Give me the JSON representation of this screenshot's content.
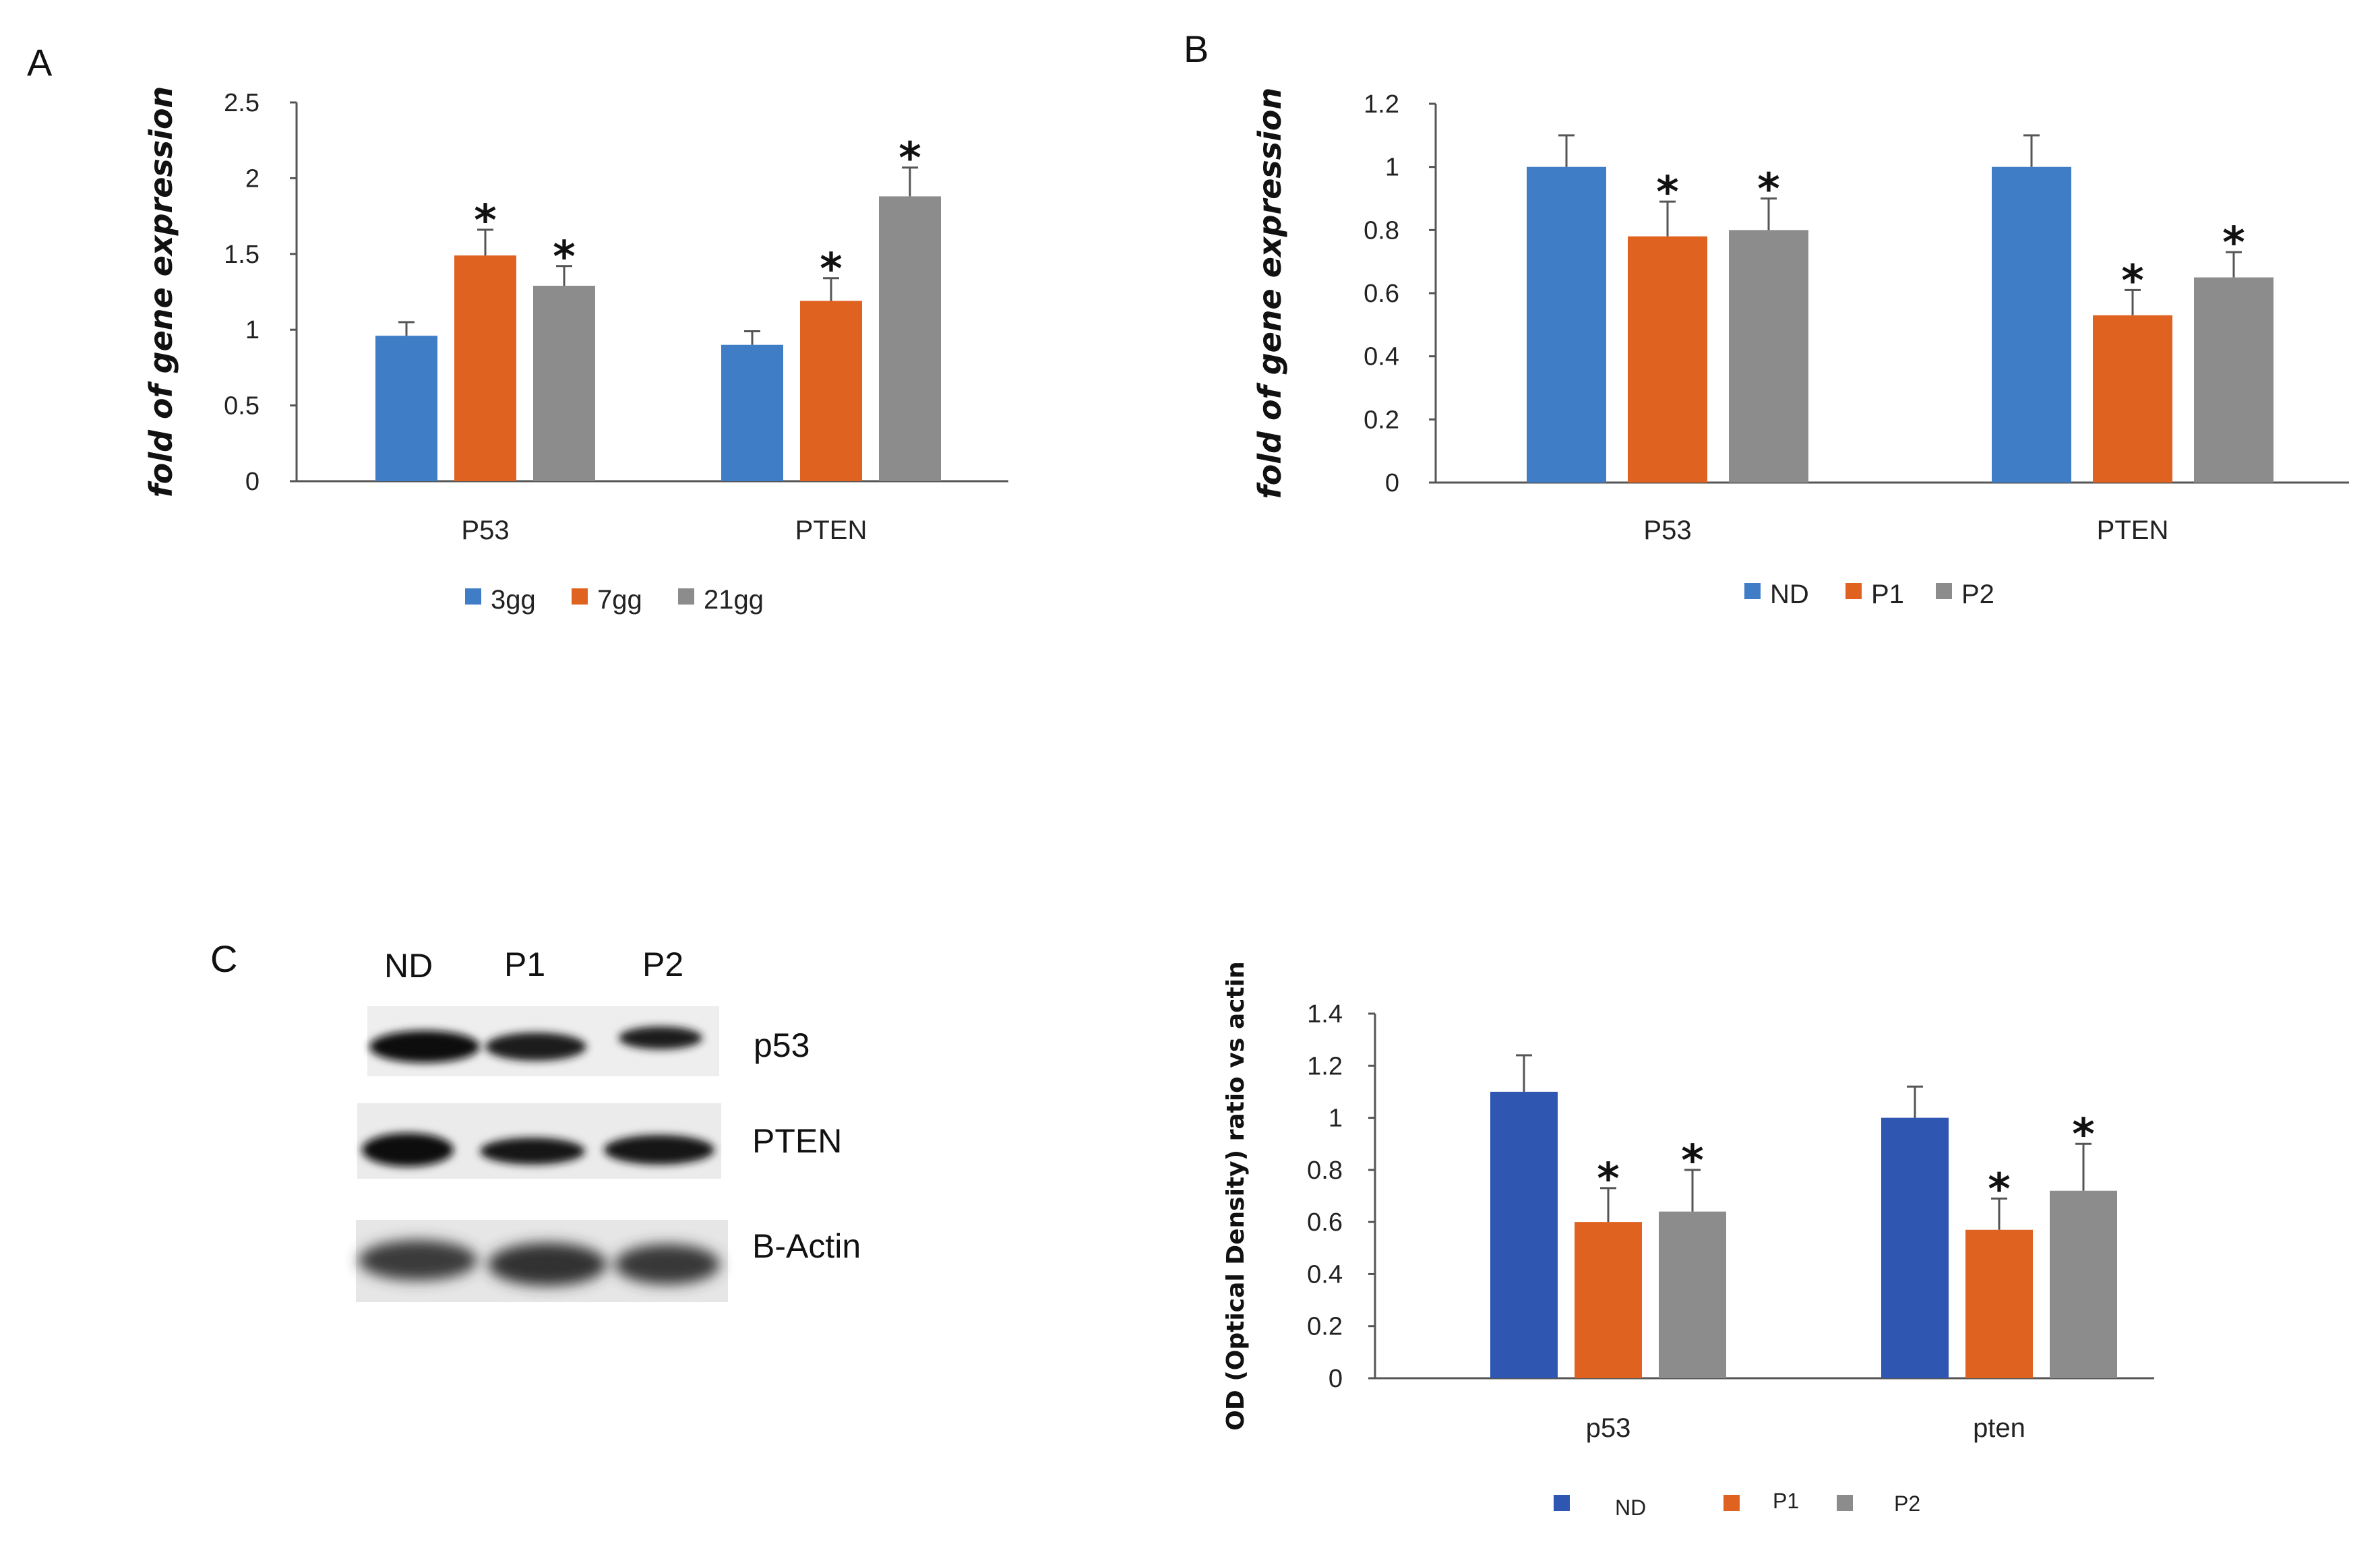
{
  "chart_data": [
    {
      "type": "bar",
      "panel": "A",
      "title": "",
      "xlabel": "",
      "ylabel": "fold of gene expression",
      "ylim": [
        0,
        2.5
      ],
      "yticks": [
        "0",
        "0.5",
        "1",
        "1.5",
        "2",
        "2.5"
      ],
      "categories": [
        "P53",
        "PTEN"
      ],
      "series": [
        {
          "name": "3gg",
          "color": "#3f7ec7",
          "values": [
            0.96,
            0.9
          ],
          "errors": [
            0.09,
            0.09
          ],
          "significant": [
            false,
            false
          ]
        },
        {
          "name": "7gg",
          "color": "#e06220",
          "values": [
            1.49,
            1.19
          ],
          "errors": [
            0.17,
            0.15
          ],
          "significant": [
            true,
            true
          ]
        },
        {
          "name": "21gg",
          "color": "#8c8c8c",
          "values": [
            1.29,
            1.88
          ],
          "errors": [
            0.13,
            0.19
          ],
          "significant": [
            true,
            true
          ]
        }
      ],
      "legend": "bottom",
      "significance_marker": "*"
    },
    {
      "type": "bar",
      "panel": "B",
      "title": "",
      "xlabel": "",
      "ylabel": "fold of gene expression",
      "ylim": [
        0,
        1.2
      ],
      "yticks": [
        "0",
        "0.2",
        "0.4",
        "0.6",
        "0.8",
        "1",
        "1.2"
      ],
      "categories": [
        "P53",
        "PTEN"
      ],
      "series": [
        {
          "name": "ND",
          "color": "#3f7ec7",
          "values": [
            1.0,
            1.0
          ],
          "errors": [
            0.1,
            0.1
          ],
          "significant": [
            false,
            false
          ]
        },
        {
          "name": "P1",
          "color": "#e06220",
          "values": [
            0.78,
            0.53
          ],
          "errors": [
            0.11,
            0.08
          ],
          "significant": [
            true,
            true
          ]
        },
        {
          "name": "P2",
          "color": "#8c8c8c",
          "values": [
            0.8,
            0.65
          ],
          "errors": [
            0.1,
            0.08
          ],
          "significant": [
            true,
            true
          ]
        }
      ],
      "legend": "bottom",
      "significance_marker": "*"
    },
    {
      "type": "bar",
      "panel": "C",
      "title": "",
      "xlabel": "",
      "ylabel": "OD (Optical Density) ratio vs actin",
      "ylim": [
        0,
        1.4
      ],
      "yticks": [
        "0",
        "0.2",
        "0.4",
        "0.6",
        "0.8",
        "1",
        "1.2",
        "1.4"
      ],
      "categories": [
        "p53",
        "pten"
      ],
      "series": [
        {
          "name": "ND",
          "color": "#2f56b0",
          "values": [
            1.1,
            1.0
          ],
          "errors": [
            0.14,
            0.12
          ],
          "significant": [
            false,
            false
          ]
        },
        {
          "name": "P1",
          "color": "#e06220",
          "values": [
            0.6,
            0.57
          ],
          "errors": [
            0.13,
            0.12
          ],
          "significant": [
            true,
            true
          ]
        },
        {
          "name": "P2",
          "color": "#8c8c8c",
          "values": [
            0.64,
            0.72
          ],
          "errors": [
            0.16,
            0.18
          ],
          "significant": [
            true,
            true
          ]
        }
      ],
      "legend": "bottom",
      "significance_marker": "*"
    }
  ],
  "panels": {
    "a_letter": "A",
    "b_letter": "B",
    "c_letter": "C"
  },
  "western_blot": {
    "lanes": [
      "ND",
      "P1",
      "P2"
    ],
    "bands": [
      "p53",
      "PTEN",
      "B-Actin"
    ]
  }
}
